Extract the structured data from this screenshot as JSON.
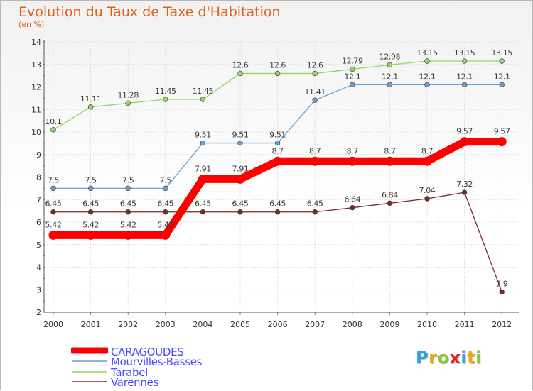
{
  "title": "Evolution du Taux de Taxe d'Habitation",
  "unit_label": "(en %)",
  "logo": {
    "text": "Proxiti",
    "letters": [
      {
        "ch": "P",
        "color": "#2aa4e0"
      },
      {
        "ch": "r",
        "color": "#f2a50c"
      },
      {
        "ch": "o",
        "color": "#8cc63f"
      },
      {
        "ch": "x",
        "color": "#e52222"
      },
      {
        "ch": "i",
        "color": "#2aa4e0"
      },
      {
        "ch": "t",
        "color": "#f2a50c"
      },
      {
        "ch": "i",
        "color": "#8cc63f"
      }
    ]
  },
  "chart_data": {
    "type": "line",
    "title": "Evolution du Taux de Taxe d'Habitation",
    "ylabel": "(en %)",
    "xlabel": "",
    "ylim": [
      2,
      14
    ],
    "yticks": [
      "2",
      "3",
      "4",
      "5",
      "6",
      "7",
      "8",
      "9",
      "10",
      "11",
      "12",
      "13",
      "14"
    ],
    "x": [
      "2000",
      "2001",
      "2002",
      "2003",
      "2004",
      "2005",
      "2006",
      "2007",
      "2008",
      "2009",
      "2010",
      "2011",
      "2012"
    ],
    "grid": true,
    "legend_position": "bottom-left",
    "series": [
      {
        "name": "CARAGOUDES",
        "color": "#ff0000",
        "values": [
          5.42,
          5.42,
          5.42,
          5.42,
          7.91,
          7.91,
          8.7,
          8.7,
          8.7,
          8.7,
          8.7,
          9.57,
          9.57
        ],
        "labels": [
          "5.42",
          "5.42",
          "5.42",
          "5.42",
          "7.91",
          "7.91",
          "8.7",
          "8.7",
          "8.7",
          "8.7",
          "8.7",
          "9.57",
          "9.57"
        ]
      },
      {
        "name": "Mourvilles-Basses",
        "color": "#6a9fd4",
        "values": [
          7.5,
          7.5,
          7.5,
          7.5,
          9.51,
          9.51,
          9.51,
          11.41,
          12.1,
          12.1,
          12.1,
          12.1,
          12.1
        ],
        "labels": [
          "7.5",
          "7.5",
          "7.5",
          "7.5",
          "9.51",
          "9.51",
          "9.51",
          "11.41",
          "12.1",
          "12.1",
          "12.1",
          "12.1",
          "12.1"
        ]
      },
      {
        "name": "Tarabel",
        "color": "#8cd964",
        "values": [
          10.1,
          11.11,
          11.28,
          11.45,
          11.45,
          12.6,
          12.6,
          12.6,
          12.79,
          12.98,
          13.15,
          13.15,
          13.15
        ],
        "labels": [
          "10.1",
          "11.11",
          "11.28",
          "11.45",
          "11.45",
          "12.6",
          "12.6",
          "12.6",
          "12.79",
          "12.98",
          "13.15",
          "13.15",
          "13.15"
        ]
      },
      {
        "name": "Varennes",
        "color": "#7a2a2a",
        "values": [
          6.45,
          6.45,
          6.45,
          6.45,
          6.45,
          6.45,
          6.45,
          6.45,
          6.64,
          6.84,
          7.04,
          7.32,
          2.9
        ],
        "labels": [
          "6.45",
          "6.45",
          "6.45",
          "6.45",
          "6.45",
          "6.45",
          "6.45",
          "6.45",
          "6.64",
          "6.84",
          "7.04",
          "7.32",
          "2.9"
        ]
      }
    ]
  }
}
